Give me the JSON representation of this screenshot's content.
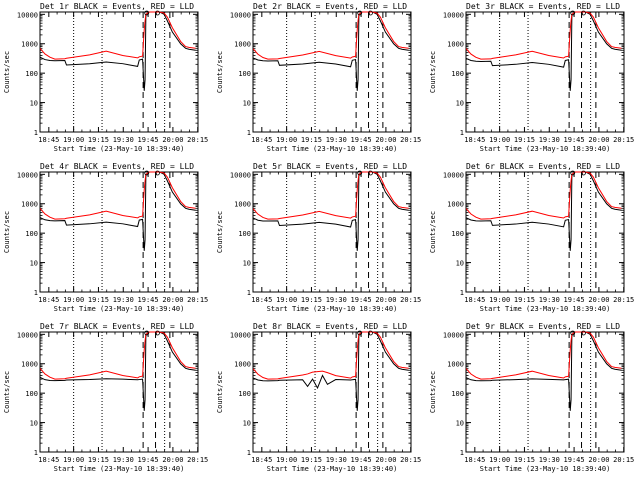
{
  "colors": {
    "background": "#ffffff",
    "events": "#000000",
    "lld": "#ff0000",
    "axes": "#000000"
  },
  "x_tick_labels": [
    "18:45",
    "19:00",
    "19:15",
    "19:30",
    "19:45",
    "20:00",
    "20:15"
  ],
  "y_tick_labels": [
    "1",
    "10",
    "100",
    "1000",
    "10000"
  ],
  "chart_data": [
    {
      "type": "line",
      "title": "Det 1r BLACK = Events, RED = LLD",
      "xlabel": "Start Time (23-May-10 18:39:40)",
      "ylabel": "Counts/sec",
      "ylim": [
        1,
        12000
      ],
      "yscale": "log",
      "x_minutes": [
        0,
        3,
        6,
        9,
        15,
        16,
        30,
        40,
        50,
        59,
        60,
        62,
        63,
        63.5,
        64,
        66,
        72,
        73,
        75,
        77,
        80,
        85,
        88,
        90,
        94
      ],
      "series": [
        {
          "name": "Events",
          "color": "#000000",
          "values": [
            350,
            290,
            270,
            265,
            270,
            190,
            210,
            240,
            210,
            170,
            280,
            300,
            25,
            60,
            9500,
            12000,
            12000,
            11500,
            10000,
            6000,
            2500,
            1000,
            700,
            650,
            600
          ]
        },
        {
          "name": "LLD",
          "color": "#ff0000",
          "values": [
            700,
            450,
            350,
            300,
            310,
            320,
            420,
            560,
            400,
            330,
            360,
            380,
            3000,
            6000,
            10000,
            12000,
            12000,
            11800,
            11000,
            8000,
            3500,
            1200,
            800,
            750,
            700
          ]
        }
      ]
    },
    {
      "type": "line",
      "title": "Det 2r BLACK = Events, RED = LLD",
      "xlabel": "Start Time (23-May-10 18:39:40)",
      "ylabel": "Counts/sec",
      "ylim": [
        1,
        12000
      ],
      "yscale": "log",
      "x_minutes": [
        0,
        3,
        6,
        9,
        15,
        16,
        30,
        40,
        50,
        59,
        60,
        62,
        63,
        63.5,
        64,
        66,
        72,
        73,
        75,
        77,
        80,
        85,
        88,
        90,
        94
      ],
      "series": [
        {
          "name": "Events",
          "color": "#000000",
          "values": [
            330,
            280,
            265,
            260,
            265,
            185,
            205,
            235,
            205,
            165,
            275,
            290,
            25,
            60,
            9500,
            12000,
            12000,
            11500,
            10000,
            6000,
            2500,
            1000,
            700,
            650,
            600
          ]
        },
        {
          "name": "LLD",
          "color": "#ff0000",
          "values": [
            680,
            440,
            340,
            300,
            305,
            315,
            415,
            550,
            395,
            325,
            355,
            375,
            3000,
            6000,
            10000,
            12000,
            12000,
            11800,
            11000,
            8000,
            3500,
            1200,
            800,
            750,
            700
          ]
        }
      ]
    },
    {
      "type": "line",
      "title": "Det 3r BLACK = Events, RED = LLD",
      "xlabel": "Start Time (23-May-10 18:39:40)",
      "ylabel": "Counts/sec",
      "ylim": [
        1,
        12000
      ],
      "yscale": "log",
      "x_minutes": [
        0,
        3,
        6,
        9,
        15,
        16,
        30,
        40,
        50,
        59,
        60,
        62,
        63,
        63.5,
        64,
        66,
        72,
        73,
        75,
        77,
        80,
        85,
        88,
        90,
        94
      ],
      "series": [
        {
          "name": "Events",
          "color": "#000000",
          "values": [
            320,
            270,
            255,
            250,
            255,
            180,
            200,
            230,
            200,
            160,
            270,
            285,
            25,
            60,
            9500,
            12000,
            12000,
            11500,
            10000,
            6000,
            2500,
            1000,
            700,
            650,
            600
          ]
        },
        {
          "name": "LLD",
          "color": "#ff0000",
          "values": [
            690,
            445,
            345,
            300,
            305,
            318,
            418,
            555,
            398,
            328,
            358,
            378,
            3000,
            6000,
            10000,
            12000,
            12000,
            11800,
            11000,
            8000,
            3500,
            1200,
            800,
            750,
            700
          ]
        }
      ]
    },
    {
      "type": "line",
      "title": "Det 4r BLACK = Events, RED = LLD",
      "xlabel": "Start Time (23-May-10 18:39:40)",
      "ylabel": "Counts/sec",
      "ylim": [
        1,
        12000
      ],
      "yscale": "log",
      "x_minutes": [
        0,
        3,
        6,
        9,
        15,
        16,
        30,
        40,
        50,
        59,
        60,
        62,
        63,
        63.5,
        64,
        66,
        72,
        73,
        75,
        77,
        80,
        85,
        88,
        90,
        94
      ],
      "series": [
        {
          "name": "Events",
          "color": "#000000",
          "values": [
            340,
            285,
            268,
            262,
            268,
            188,
            208,
            238,
            208,
            168,
            278,
            295,
            25,
            60,
            9500,
            12000,
            12000,
            11500,
            10000,
            6000,
            2500,
            1000,
            700,
            650,
            600
          ]
        },
        {
          "name": "LLD",
          "color": "#ff0000",
          "values": [
            700,
            450,
            350,
            300,
            310,
            320,
            420,
            560,
            400,
            330,
            360,
            380,
            3000,
            6000,
            10000,
            12000,
            12000,
            11800,
            11000,
            8000,
            3500,
            1200,
            800,
            750,
            700
          ]
        }
      ]
    },
    {
      "type": "line",
      "title": "Det 5r BLACK = Events, RED = LLD",
      "xlabel": "Start Time (23-May-10 18:39:40)",
      "ylabel": "Counts/sec",
      "ylim": [
        1,
        12000
      ],
      "yscale": "log",
      "x_minutes": [
        0,
        3,
        6,
        9,
        15,
        16,
        30,
        40,
        50,
        59,
        60,
        62,
        63,
        63.5,
        64,
        66,
        72,
        73,
        75,
        77,
        80,
        85,
        88,
        90,
        94
      ],
      "series": [
        {
          "name": "Events",
          "color": "#000000",
          "values": [
            330,
            275,
            260,
            258,
            262,
            182,
            202,
            232,
            202,
            162,
            272,
            288,
            25,
            60,
            9500,
            12000,
            12000,
            11500,
            10000,
            6000,
            2500,
            1000,
            700,
            650,
            600
          ]
        },
        {
          "name": "LLD",
          "color": "#ff0000",
          "values": [
            685,
            442,
            342,
            300,
            306,
            316,
            416,
            552,
            396,
            326,
            356,
            376,
            3000,
            6000,
            10000,
            12000,
            12000,
            11800,
            11000,
            8000,
            3500,
            1200,
            800,
            750,
            700
          ]
        }
      ]
    },
    {
      "type": "line",
      "title": "Det 6r BLACK = Events, RED = LLD",
      "xlabel": "Start Time (23-May-10 18:39:40)",
      "ylabel": "Counts/sec",
      "ylim": [
        1,
        12000
      ],
      "yscale": "log",
      "x_minutes": [
        0,
        3,
        6,
        9,
        15,
        16,
        30,
        40,
        50,
        59,
        60,
        62,
        63,
        63.5,
        64,
        66,
        72,
        73,
        75,
        77,
        80,
        85,
        88,
        90,
        94
      ],
      "series": [
        {
          "name": "Events",
          "color": "#000000",
          "values": [
            335,
            280,
            262,
            260,
            264,
            184,
            204,
            234,
            204,
            164,
            274,
            290,
            25,
            60,
            9500,
            12000,
            12000,
            11500,
            10000,
            6000,
            2500,
            1000,
            700,
            650,
            600
          ]
        },
        {
          "name": "LLD",
          "color": "#ff0000",
          "values": [
            695,
            448,
            348,
            300,
            308,
            318,
            418,
            558,
            398,
            328,
            358,
            378,
            3000,
            6000,
            10000,
            12000,
            12000,
            11800,
            11000,
            8000,
            3500,
            1200,
            800,
            750,
            700
          ]
        }
      ]
    },
    {
      "type": "line",
      "title": "Det 7r BLACK = Events, RED = LLD",
      "xlabel": "Start Time (23-May-10 18:39:40)",
      "ylabel": "Counts/sec",
      "ylim": [
        1,
        12000
      ],
      "yscale": "log",
      "x_minutes": [
        0,
        3,
        6,
        9,
        15,
        16,
        30,
        40,
        50,
        59,
        60,
        62,
        63,
        63.5,
        64,
        66,
        72,
        73,
        75,
        77,
        80,
        85,
        88,
        90,
        94
      ],
      "series": [
        {
          "name": "Events",
          "color": "#000000",
          "values": [
            345,
            288,
            270,
            266,
            272,
            280,
            290,
            310,
            300,
            285,
            290,
            300,
            25,
            60,
            9500,
            12000,
            12000,
            11500,
            10000,
            6000,
            2500,
            1000,
            700,
            650,
            600
          ]
        },
        {
          "name": "LLD",
          "color": "#ff0000",
          "values": [
            700,
            450,
            350,
            300,
            310,
            320,
            420,
            560,
            400,
            330,
            360,
            380,
            3000,
            6000,
            10000,
            12000,
            12000,
            11800,
            11000,
            8000,
            3500,
            1200,
            800,
            750,
            700
          ]
        }
      ]
    },
    {
      "type": "line",
      "title": "Det 8r BLACK = Events, RED = LLD",
      "xlabel": "Start Time (23-May-10 18:39:40)",
      "ylabel": "Counts/sec",
      "ylim": [
        1,
        12000
      ],
      "yscale": "log",
      "x_minutes": [
        0,
        3,
        6,
        9,
        15,
        16,
        30,
        33,
        36,
        39,
        42,
        45,
        50,
        59,
        60,
        62,
        63,
        63.5,
        64,
        66,
        72,
        73,
        75,
        77,
        80,
        85,
        88,
        90,
        94
      ],
      "series": [
        {
          "name": "Events",
          "color": "#000000",
          "values": [
            330,
            280,
            265,
            262,
            268,
            275,
            285,
            170,
            300,
            150,
            400,
            200,
            290,
            280,
            285,
            295,
            25,
            60,
            9500,
            12000,
            12000,
            11500,
            10000,
            6000,
            2500,
            1000,
            700,
            650,
            600
          ]
        },
        {
          "name": "LLD",
          "color": "#ff0000",
          "values": [
            680,
            440,
            340,
            300,
            305,
            315,
            415,
            450,
            520,
            540,
            560,
            500,
            395,
            325,
            355,
            375,
            3000,
            6000,
            10000,
            12000,
            12000,
            11800,
            11000,
            8000,
            3500,
            1200,
            800,
            750,
            700
          ]
        }
      ]
    },
    {
      "type": "line",
      "title": "Det 9r BLACK = Events, RED = LLD",
      "xlabel": "Start Time (23-May-10 18:39:40)",
      "ylabel": "Counts/sec",
      "ylim": [
        1,
        12000
      ],
      "yscale": "log",
      "x_minutes": [
        0,
        3,
        6,
        9,
        15,
        16,
        30,
        40,
        50,
        59,
        60,
        62,
        63,
        63.5,
        64,
        66,
        72,
        73,
        75,
        77,
        80,
        85,
        88,
        90,
        94
      ],
      "series": [
        {
          "name": "Events",
          "color": "#000000",
          "values": [
            340,
            285,
            268,
            263,
            268,
            276,
            288,
            305,
            295,
            282,
            288,
            298,
            25,
            60,
            9500,
            12000,
            12000,
            11500,
            10000,
            6000,
            2500,
            1000,
            700,
            650,
            600
          ]
        },
        {
          "name": "LLD",
          "color": "#ff0000",
          "values": [
            695,
            448,
            348,
            300,
            308,
            318,
            418,
            558,
            398,
            328,
            358,
            378,
            3000,
            6000,
            10000,
            12000,
            12000,
            11800,
            11000,
            8000,
            3500,
            1200,
            800,
            750,
            700
          ]
        }
      ]
    }
  ],
  "markers": {
    "dotted_minutes": [
      20.33,
      37.5,
      75.33
    ],
    "dashed_minutes": [
      62.33,
      69.83,
      78.5
    ],
    "x_tick_minutes": [
      5.33,
      20.33,
      35.33,
      50.33,
      65.33,
      80.33,
      95.33
    ],
    "x_range_minutes": [
      0,
      95.5
    ]
  }
}
